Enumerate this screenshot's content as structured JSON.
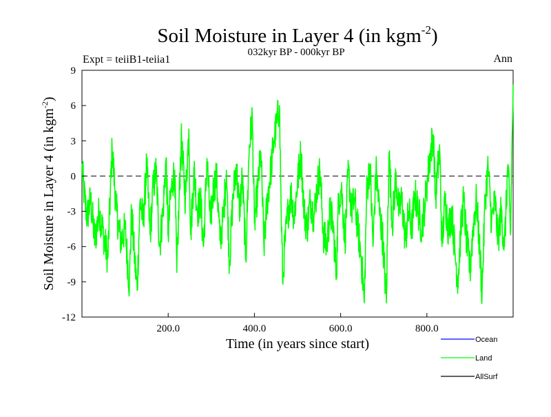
{
  "chart_data": {
    "type": "line",
    "title": {
      "main": "Soil Moisture in Layer 4 (in kgm",
      "sup": "-2",
      "close": ")"
    },
    "subtitle": "032kyr BP - 000kyr BP",
    "left_label": "Expt = teiiB1-teiia1",
    "right_label": "Ann",
    "xlabel": "Time (in years since start)",
    "ylabel": {
      "main": "Soil Moisture in Layer 4 (in kgm",
      "sup": "-2",
      "close": ")"
    },
    "xlim": [
      0,
      1000
    ],
    "ylim": [
      -12,
      9
    ],
    "x_ticks": [
      200,
      400,
      600,
      800
    ],
    "x_tick_labels": [
      "200.0",
      "400.0",
      "600.0",
      "800.0"
    ],
    "y_ticks": [
      -12,
      -9,
      -6,
      -3,
      0,
      3,
      6,
      9
    ],
    "y_tick_labels": [
      "-12",
      "-9",
      "-6",
      "-3",
      "0",
      "3",
      "6",
      "9"
    ],
    "zero_line": true,
    "series": [
      {
        "name": "Ocean",
        "color": "#0000ff",
        "values": []
      },
      {
        "name": "Land",
        "color": "#00ff00",
        "keyframes": [
          [
            0,
            0.8
          ],
          [
            5,
            -1.5
          ],
          [
            12,
            -3.5
          ],
          [
            20,
            -2
          ],
          [
            30,
            -5.5
          ],
          [
            40,
            -3
          ],
          [
            50,
            -5
          ],
          [
            60,
            -7
          ],
          [
            70,
            2.4
          ],
          [
            80,
            -3
          ],
          [
            90,
            -5.5
          ],
          [
            100,
            -4.5
          ],
          [
            110,
            -9.3
          ],
          [
            115,
            -3
          ],
          [
            122,
            -7
          ],
          [
            128,
            -9.7
          ],
          [
            135,
            -2
          ],
          [
            142,
            -4
          ],
          [
            150,
            1
          ],
          [
            158,
            -5
          ],
          [
            165,
            -1
          ],
          [
            172,
            0.5
          ],
          [
            180,
            -6
          ],
          [
            188,
            -3
          ],
          [
            195,
            1.5
          ],
          [
            200,
            -5
          ],
          [
            205,
            -2
          ],
          [
            210,
            -0.5
          ],
          [
            215,
            0.5
          ],
          [
            220,
            -8.2
          ],
          [
            230,
            3.2
          ],
          [
            240,
            -2
          ],
          [
            248,
            4
          ],
          [
            252,
            -5
          ],
          [
            260,
            0.5
          ],
          [
            268,
            -3
          ],
          [
            275,
            -2
          ],
          [
            282,
            -6
          ],
          [
            290,
            1.5
          ],
          [
            298,
            -4
          ],
          [
            305,
            -1
          ],
          [
            312,
            0
          ],
          [
            320,
            -5.5
          ],
          [
            328,
            -3.5
          ],
          [
            335,
            0.5
          ],
          [
            342,
            -7.5
          ],
          [
            350,
            -2
          ],
          [
            358,
            1
          ],
          [
            365,
            -3
          ],
          [
            372,
            0
          ],
          [
            380,
            -7
          ],
          [
            388,
            2.5
          ],
          [
            395,
            5
          ],
          [
            400,
            -4
          ],
          [
            408,
            -1
          ],
          [
            415,
            2
          ],
          [
            422,
            -6
          ],
          [
            430,
            -2
          ],
          [
            438,
            0.5
          ],
          [
            445,
            3
          ],
          [
            452,
            4.5
          ],
          [
            458,
            6
          ],
          [
            462,
            -3
          ],
          [
            466,
            -9.2
          ],
          [
            470,
            -6
          ],
          [
            478,
            -3
          ],
          [
            485,
            -1.5
          ],
          [
            492,
            -3.5
          ],
          [
            500,
            -0.5
          ],
          [
            508,
            2
          ],
          [
            515,
            -3
          ],
          [
            522,
            -4.5
          ],
          [
            530,
            -2
          ],
          [
            538,
            -3.5
          ],
          [
            545,
            -1
          ],
          [
            552,
            0.5
          ],
          [
            560,
            -5
          ],
          [
            568,
            -6
          ],
          [
            575,
            -3
          ],
          [
            582,
            -4
          ],
          [
            590,
            -8.5
          ],
          [
            595,
            -2
          ],
          [
            602,
            -1
          ],
          [
            610,
            -5.5
          ],
          [
            618,
            0.5
          ],
          [
            625,
            -3
          ],
          [
            632,
            -2
          ],
          [
            640,
            -4.5
          ],
          [
            648,
            -7
          ],
          [
            655,
            -10.8
          ],
          [
            660,
            -1.5
          ],
          [
            668,
            1
          ],
          [
            675,
            -6
          ],
          [
            682,
            0.5
          ],
          [
            690,
            -3
          ],
          [
            698,
            -5.5
          ],
          [
            706,
            -10.8
          ],
          [
            712,
            2
          ],
          [
            720,
            -4
          ],
          [
            728,
            0
          ],
          [
            735,
            -3
          ],
          [
            742,
            -2
          ],
          [
            750,
            -5.5
          ],
          [
            758,
            -3
          ],
          [
            765,
            -4.5
          ],
          [
            772,
            -1.5
          ],
          [
            780,
            -3
          ],
          [
            788,
            -4.5
          ],
          [
            795,
            -2.5
          ],
          [
            802,
            0
          ],
          [
            810,
            2.5
          ],
          [
            815,
            3.5
          ],
          [
            820,
            -2
          ],
          [
            825,
            0.5
          ],
          [
            830,
            2
          ],
          [
            835,
            -6
          ],
          [
            842,
            -2
          ],
          [
            850,
            -4.5
          ],
          [
            858,
            -3
          ],
          [
            865,
            -6.5
          ],
          [
            872,
            -9
          ],
          [
            878,
            -5
          ],
          [
            885,
            -2
          ],
          [
            892,
            -5.5
          ],
          [
            900,
            -8
          ],
          [
            908,
            -4
          ],
          [
            915,
            -2
          ],
          [
            922,
            -6
          ],
          [
            928,
            -10
          ],
          [
            935,
            -2
          ],
          [
            942,
            0.8
          ],
          [
            950,
            -4
          ],
          [
            958,
            -2
          ],
          [
            965,
            -5.5
          ],
          [
            972,
            -3
          ],
          [
            980,
            -6
          ],
          [
            988,
            1
          ],
          [
            994,
            -5
          ],
          [
            1000,
            7.8
          ]
        ]
      },
      {
        "name": "AllSurf",
        "color": "#000000",
        "values": []
      }
    ],
    "legend_position": "bottom-right",
    "grid": false
  }
}
